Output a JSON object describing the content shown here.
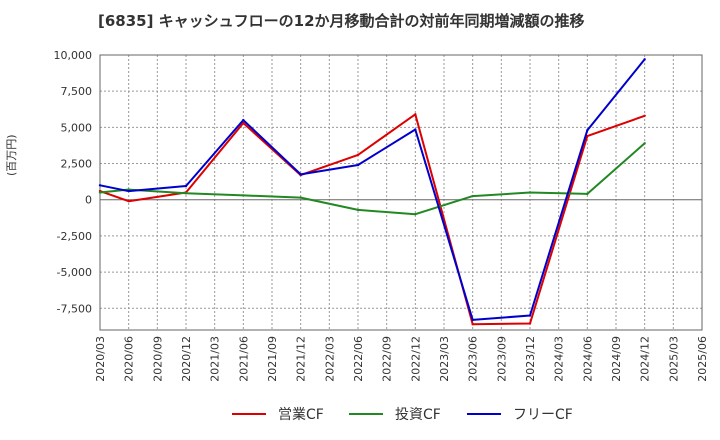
{
  "chart_data": {
    "type": "line",
    "title": "[6835]  キャッシュフローの12か月移動合計の対前年同期増減額の推移",
    "xlabel": "",
    "ylabel": "(百万円)",
    "ylim": [
      -9000,
      10000
    ],
    "yticks": [
      10000,
      7500,
      5000,
      2500,
      0,
      -2500,
      -5000,
      -7500
    ],
    "ytick_labels": [
      "10,000",
      "7,500",
      "5,000",
      "2,500",
      "0",
      "-2,500",
      "-5,000",
      "-7,500"
    ],
    "x_categories": [
      "2020/03",
      "2020/06",
      "2020/09",
      "2020/12",
      "2021/03",
      "2021/06",
      "2021/09",
      "2021/12",
      "2022/03",
      "2022/06",
      "2022/09",
      "2022/12",
      "2023/03",
      "2023/06",
      "2023/09",
      "2023/12",
      "2024/03",
      "2024/06",
      "2024/09",
      "2024/12",
      "2025/03",
      "2025/06"
    ],
    "grid": true,
    "legend_position": "bottom",
    "series": [
      {
        "name": "営業CF",
        "color": "#dd0000",
        "x": [
          "2020/03",
          "2020/06",
          "2020/12",
          "2021/06",
          "2021/12",
          "2022/06",
          "2022/12",
          "2023/06",
          "2023/12",
          "2024/06",
          "2024/12"
        ],
        "values": [
          600,
          -100,
          500,
          5300,
          1700,
          3100,
          5900,
          -8600,
          -8550,
          4400,
          5800
        ]
      },
      {
        "name": "投資CF",
        "color": "#228822",
        "x": [
          "2020/03",
          "2020/06",
          "2020/12",
          "2021/06",
          "2021/12",
          "2022/06",
          "2022/12",
          "2023/06",
          "2023/12",
          "2024/06",
          "2024/12"
        ],
        "values": [
          500,
          700,
          450,
          300,
          150,
          -700,
          -1000,
          250,
          500,
          400,
          3900
        ]
      },
      {
        "name": "フリーCF",
        "color": "#0000cc",
        "x": [
          "2020/03",
          "2020/06",
          "2020/12",
          "2021/06",
          "2021/12",
          "2022/06",
          "2022/12",
          "2023/06",
          "2023/12",
          "2024/06",
          "2024/12"
        ],
        "values": [
          1000,
          600,
          950,
          5500,
          1750,
          2400,
          4850,
          -8300,
          -8000,
          4800,
          9700
        ]
      }
    ]
  }
}
